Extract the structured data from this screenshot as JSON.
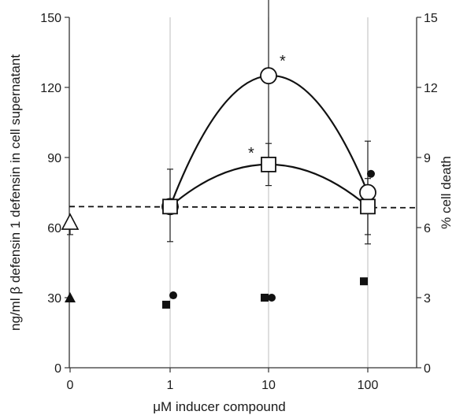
{
  "chart_data": {
    "type": "scatter",
    "xlabel": "μM inducer compound",
    "ylabel": "ng/ml β defensin 1 defensin in cell supernatant",
    "y2label": "% cell death",
    "x_ticks": [
      "0",
      "1",
      "10",
      "100"
    ],
    "ylim": [
      0,
      150
    ],
    "y_ticks": [
      0,
      30,
      60,
      90,
      120,
      150
    ],
    "y2lim": [
      0,
      15
    ],
    "y2_ticks": [
      0,
      3,
      6,
      9,
      12,
      15
    ],
    "grid": "vertical gridlines at x ticks",
    "baseline": {
      "style": "dashed",
      "y_start": 69,
      "y_end": 68.5
    },
    "series": [
      {
        "marker": "open-circle",
        "axis": "left",
        "connected": true,
        "points": [
          {
            "x": "1",
            "y": 69,
            "err_up": 16,
            "err_down": 15
          },
          {
            "x": "10",
            "y": 125,
            "err_up": 35,
            "err_down": 35,
            "annotation": "*"
          },
          {
            "x": "100",
            "y": 75,
            "err_up": 22,
            "err_down": 22
          }
        ]
      },
      {
        "marker": "open-square",
        "axis": "left",
        "connected": true,
        "points": [
          {
            "x": "1",
            "y": 69,
            "err_up": 0,
            "err_down": 0
          },
          {
            "x": "10",
            "y": 87,
            "err_up": 9,
            "err_down": 9,
            "annotation": "*"
          },
          {
            "x": "100",
            "y": 69,
            "err_up": 12,
            "err_down": 12
          }
        ]
      },
      {
        "marker": "open-triangle",
        "axis": "left",
        "connected": false,
        "points": [
          {
            "x": "0",
            "y": 62,
            "err_up": 0,
            "err_down": 5
          }
        ]
      },
      {
        "marker": "filled-triangle",
        "axis": "right",
        "connected": false,
        "points": [
          {
            "x": "0",
            "y": 3.0
          }
        ]
      },
      {
        "marker": "filled-square",
        "axis": "right",
        "connected": false,
        "points": [
          {
            "x": "1",
            "y": 2.7
          },
          {
            "x": "10",
            "y": 3.0
          },
          {
            "x": "100",
            "y": 3.7
          }
        ]
      },
      {
        "marker": "filled-circle",
        "axis": "right",
        "connected": false,
        "points": [
          {
            "x": "1",
            "y": 3.1
          },
          {
            "x": "10",
            "y": 3.0
          },
          {
            "x": "100",
            "y": 8.3
          }
        ]
      }
    ]
  }
}
